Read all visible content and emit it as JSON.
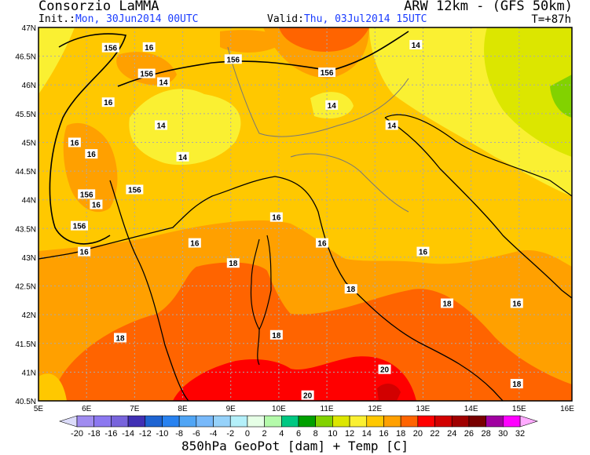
{
  "header": {
    "org": "Consorzio LaMMA",
    "model": "ARW 12km - (GFS 50km)",
    "init_label": "Init.:",
    "init_value": "Mon, 30Jun2014 00UTC",
    "valid_label": "Valid:",
    "valid_value": "Thu, 03Jul2014 15UTC",
    "forecast_step": "T=+87h"
  },
  "map": {
    "lat_ticks": [
      "47N",
      "46.5N",
      "46N",
      "45.5N",
      "45N",
      "44.5N",
      "44N",
      "43.5N",
      "43N",
      "42.5N",
      "42N",
      "41.5N",
      "41N",
      "40.5N"
    ],
    "lon_ticks": [
      "5E",
      "6E",
      "7E",
      "8E",
      "9E",
      "10E",
      "11E",
      "12E",
      "13E",
      "14E",
      "15E",
      "16E"
    ],
    "contour_labels": [
      {
        "text": "156",
        "lon": 6.5,
        "lat": 46.65
      },
      {
        "text": "16",
        "lon": 7.3,
        "lat": 46.66
      },
      {
        "text": "156",
        "lon": 7.25,
        "lat": 46.2
      },
      {
        "text": "14",
        "lon": 7.6,
        "lat": 46.05
      },
      {
        "text": "156",
        "lon": 9.05,
        "lat": 46.45
      },
      {
        "text": "156",
        "lon": 11.0,
        "lat": 46.22
      },
      {
        "text": "14",
        "lon": 12.85,
        "lat": 46.7
      },
      {
        "text": "16",
        "lon": 6.45,
        "lat": 45.7
      },
      {
        "text": "14",
        "lon": 7.55,
        "lat": 45.3
      },
      {
        "text": "14",
        "lon": 11.1,
        "lat": 45.65
      },
      {
        "text": "14",
        "lon": 12.35,
        "lat": 45.3
      },
      {
        "text": "16",
        "lon": 5.75,
        "lat": 45.0
      },
      {
        "text": "16",
        "lon": 6.1,
        "lat": 44.8
      },
      {
        "text": "14",
        "lon": 8.0,
        "lat": 44.75
      },
      {
        "text": "156",
        "lon": 7.0,
        "lat": 44.18
      },
      {
        "text": "156",
        "lon": 6.0,
        "lat": 44.1
      },
      {
        "text": "16",
        "lon": 6.2,
        "lat": 43.92
      },
      {
        "text": "156",
        "lon": 5.85,
        "lat": 43.55
      },
      {
        "text": "16",
        "lon": 5.95,
        "lat": 43.1
      },
      {
        "text": "16",
        "lon": 9.95,
        "lat": 43.7
      },
      {
        "text": "16",
        "lon": 8.25,
        "lat": 43.25
      },
      {
        "text": "16",
        "lon": 10.9,
        "lat": 43.25
      },
      {
        "text": "18",
        "lon": 9.05,
        "lat": 42.9
      },
      {
        "text": "16",
        "lon": 13.0,
        "lat": 43.1
      },
      {
        "text": "18",
        "lon": 11.5,
        "lat": 42.45
      },
      {
        "text": "18",
        "lon": 13.5,
        "lat": 42.2
      },
      {
        "text": "16",
        "lon": 14.95,
        "lat": 42.2
      },
      {
        "text": "18",
        "lon": 9.95,
        "lat": 41.65
      },
      {
        "text": "18",
        "lon": 6.7,
        "lat": 41.6
      },
      {
        "text": "20",
        "lon": 12.2,
        "lat": 41.05
      },
      {
        "text": "18",
        "lon": 14.95,
        "lat": 40.8
      },
      {
        "text": "20",
        "lon": 10.6,
        "lat": 40.6
      }
    ]
  },
  "colorbar": {
    "title": "850hPa GeoPot [dam] + Temp [C]",
    "labels": [
      "-20",
      "-18",
      "-16",
      "-14",
      "-12",
      "-10",
      "-8",
      "-6",
      "-4",
      "-2",
      "0",
      "2",
      "4",
      "6",
      "8",
      "10",
      "12",
      "14",
      "16",
      "18",
      "20",
      "22",
      "24",
      "26",
      "28",
      "30",
      "32"
    ],
    "colors": [
      "#a08cf0",
      "#8c78f0",
      "#7864dc",
      "#4030b4",
      "#1e64d2",
      "#2882f0",
      "#50a5f5",
      "#78b9fa",
      "#96d2fa",
      "#b4f0fa",
      "#e6ffe6",
      "#b4faaa",
      "#00c882",
      "#00a000",
      "#82d200",
      "#dce600",
      "#faf032",
      "#ffc800",
      "#ffa000",
      "#ff6400",
      "#ff0000",
      "#d20000",
      "#a00000",
      "#780000",
      "#a000a0",
      "#ff00ff"
    ],
    "low_extend_color": "#dcdcfa",
    "high_extend_color": "#ffaaff"
  }
}
